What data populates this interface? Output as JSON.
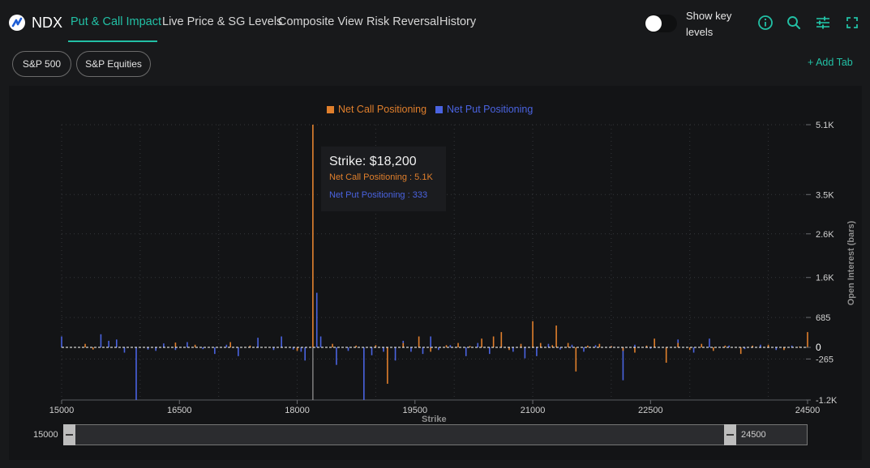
{
  "header": {
    "brand": "NDX",
    "tabs": [
      {
        "label": "Put & Call Impact",
        "active": true
      },
      {
        "label": "Live Price & SG Levels",
        "active": false
      },
      {
        "label": "Composite View",
        "active": false
      },
      {
        "label": "Risk Reversal",
        "active": false
      },
      {
        "label": "History",
        "active": false
      }
    ],
    "toggle": {
      "label": "Show key levels",
      "on": false
    },
    "icons": [
      "info-icon",
      "search-icon",
      "sliders-icon",
      "expand-icon"
    ]
  },
  "pills": [
    "S&P 500",
    "S&P Equities"
  ],
  "add_tab": "+ Add Tab",
  "colors": {
    "accent": "#22c0a5",
    "call": "#e07f2c",
    "put": "#4a63e0",
    "background": "#18191b",
    "panel": "#131416"
  },
  "tooltip": {
    "title": "Strike: $18,200",
    "call": "Net Call Positioning : 5.1K",
    "put": "Net Put Positioning : 333"
  },
  "chart_data": {
    "type": "bar",
    "xlabel": "Strike",
    "ylabel": "Open Interest (bars)",
    "legend": [
      "Net Call Positioning",
      "Net Put Positioning"
    ],
    "x_ticks": [
      "15000",
      "16500",
      "18000",
      "19500",
      "21000",
      "22500",
      "24500"
    ],
    "x_tick_values": [
      15000,
      16500,
      18000,
      19500,
      21000,
      22500,
      24500
    ],
    "y_ticks": [
      "5.1K",
      "3.5K",
      "2.6K",
      "1.6K",
      "685",
      "0",
      "-265",
      "-1.2K"
    ],
    "y_tick_values": [
      5100,
      3500,
      2600,
      1600,
      685,
      0,
      -265,
      -1200
    ],
    "xlim": [
      15000,
      24500
    ],
    "ylim": [
      -1200,
      5100
    ],
    "highlight_strike": 18200,
    "series": [
      {
        "name": "Net Put Positioning",
        "color": "#4a63e0",
        "points": [
          [
            15000,
            250
          ],
          [
            15500,
            300
          ],
          [
            15600,
            150
          ],
          [
            15700,
            180
          ],
          [
            15800,
            -120
          ],
          [
            15950,
            -1200
          ],
          [
            16100,
            -50
          ],
          [
            16200,
            -80
          ],
          [
            16300,
            90
          ],
          [
            16450,
            -60
          ],
          [
            16600,
            120
          ],
          [
            16800,
            -40
          ],
          [
            16950,
            -150
          ],
          [
            17100,
            60
          ],
          [
            17250,
            -200
          ],
          [
            17500,
            220
          ],
          [
            17700,
            -60
          ],
          [
            17800,
            250
          ],
          [
            17950,
            -50
          ],
          [
            18050,
            -100
          ],
          [
            18100,
            -300
          ],
          [
            18250,
            1250
          ],
          [
            18300,
            250
          ],
          [
            18500,
            -400
          ],
          [
            18650,
            -80
          ],
          [
            18850,
            -1200
          ],
          [
            18950,
            -180
          ],
          [
            19100,
            -100
          ],
          [
            19250,
            -300
          ],
          [
            19350,
            150
          ],
          [
            19450,
            -100
          ],
          [
            19600,
            -150
          ],
          [
            19700,
            250
          ],
          [
            19800,
            -60
          ],
          [
            19950,
            50
          ],
          [
            20150,
            -200
          ],
          [
            20300,
            100
          ],
          [
            20450,
            -150
          ],
          [
            20600,
            80
          ],
          [
            20750,
            -100
          ],
          [
            20900,
            -250
          ],
          [
            21050,
            -200
          ],
          [
            21200,
            80
          ],
          [
            21350,
            -50
          ],
          [
            21500,
            60
          ],
          [
            21650,
            -100
          ],
          [
            21800,
            50
          ],
          [
            22000,
            30
          ],
          [
            22150,
            -750
          ],
          [
            22300,
            60
          ],
          [
            22500,
            -30
          ],
          [
            22700,
            -60
          ],
          [
            22850,
            180
          ],
          [
            23050,
            -120
          ],
          [
            23250,
            200
          ],
          [
            23500,
            40
          ],
          [
            23700,
            -40
          ],
          [
            23900,
            60
          ],
          [
            24100,
            -60
          ],
          [
            24300,
            40
          ]
        ]
      },
      {
        "name": "Net Call Positioning",
        "color": "#e07f2c",
        "points": [
          [
            15300,
            80
          ],
          [
            15400,
            -50
          ],
          [
            16450,
            110
          ],
          [
            16700,
            60
          ],
          [
            17150,
            120
          ],
          [
            17400,
            40
          ],
          [
            18000,
            -80
          ],
          [
            18200,
            5100
          ],
          [
            18450,
            80
          ],
          [
            18750,
            40
          ],
          [
            19000,
            50
          ],
          [
            19150,
            -830
          ],
          [
            19350,
            100
          ],
          [
            19550,
            250
          ],
          [
            19700,
            -100
          ],
          [
            19900,
            50
          ],
          [
            20050,
            100
          ],
          [
            20200,
            30
          ],
          [
            20350,
            200
          ],
          [
            20500,
            250
          ],
          [
            20600,
            350
          ],
          [
            20700,
            -60
          ],
          [
            20850,
            80
          ],
          [
            21000,
            600
          ],
          [
            21100,
            100
          ],
          [
            21250,
            50
          ],
          [
            21300,
            500
          ],
          [
            21450,
            100
          ],
          [
            21550,
            -550
          ],
          [
            21700,
            40
          ],
          [
            21850,
            80
          ],
          [
            22000,
            30
          ],
          [
            22150,
            -80
          ],
          [
            22300,
            -120
          ],
          [
            22450,
            40
          ],
          [
            22550,
            200
          ],
          [
            22700,
            -350
          ],
          [
            22850,
            100
          ],
          [
            23000,
            -60
          ],
          [
            23150,
            80
          ],
          [
            23300,
            -80
          ],
          [
            23450,
            40
          ],
          [
            23650,
            -150
          ],
          [
            23800,
            40
          ],
          [
            24000,
            60
          ],
          [
            24200,
            -60
          ],
          [
            24400,
            20
          ],
          [
            24500,
            350
          ]
        ]
      }
    ],
    "grid": true,
    "legend_position": "top-center"
  },
  "range": {
    "min_label": "15000",
    "max_label": "24500"
  }
}
